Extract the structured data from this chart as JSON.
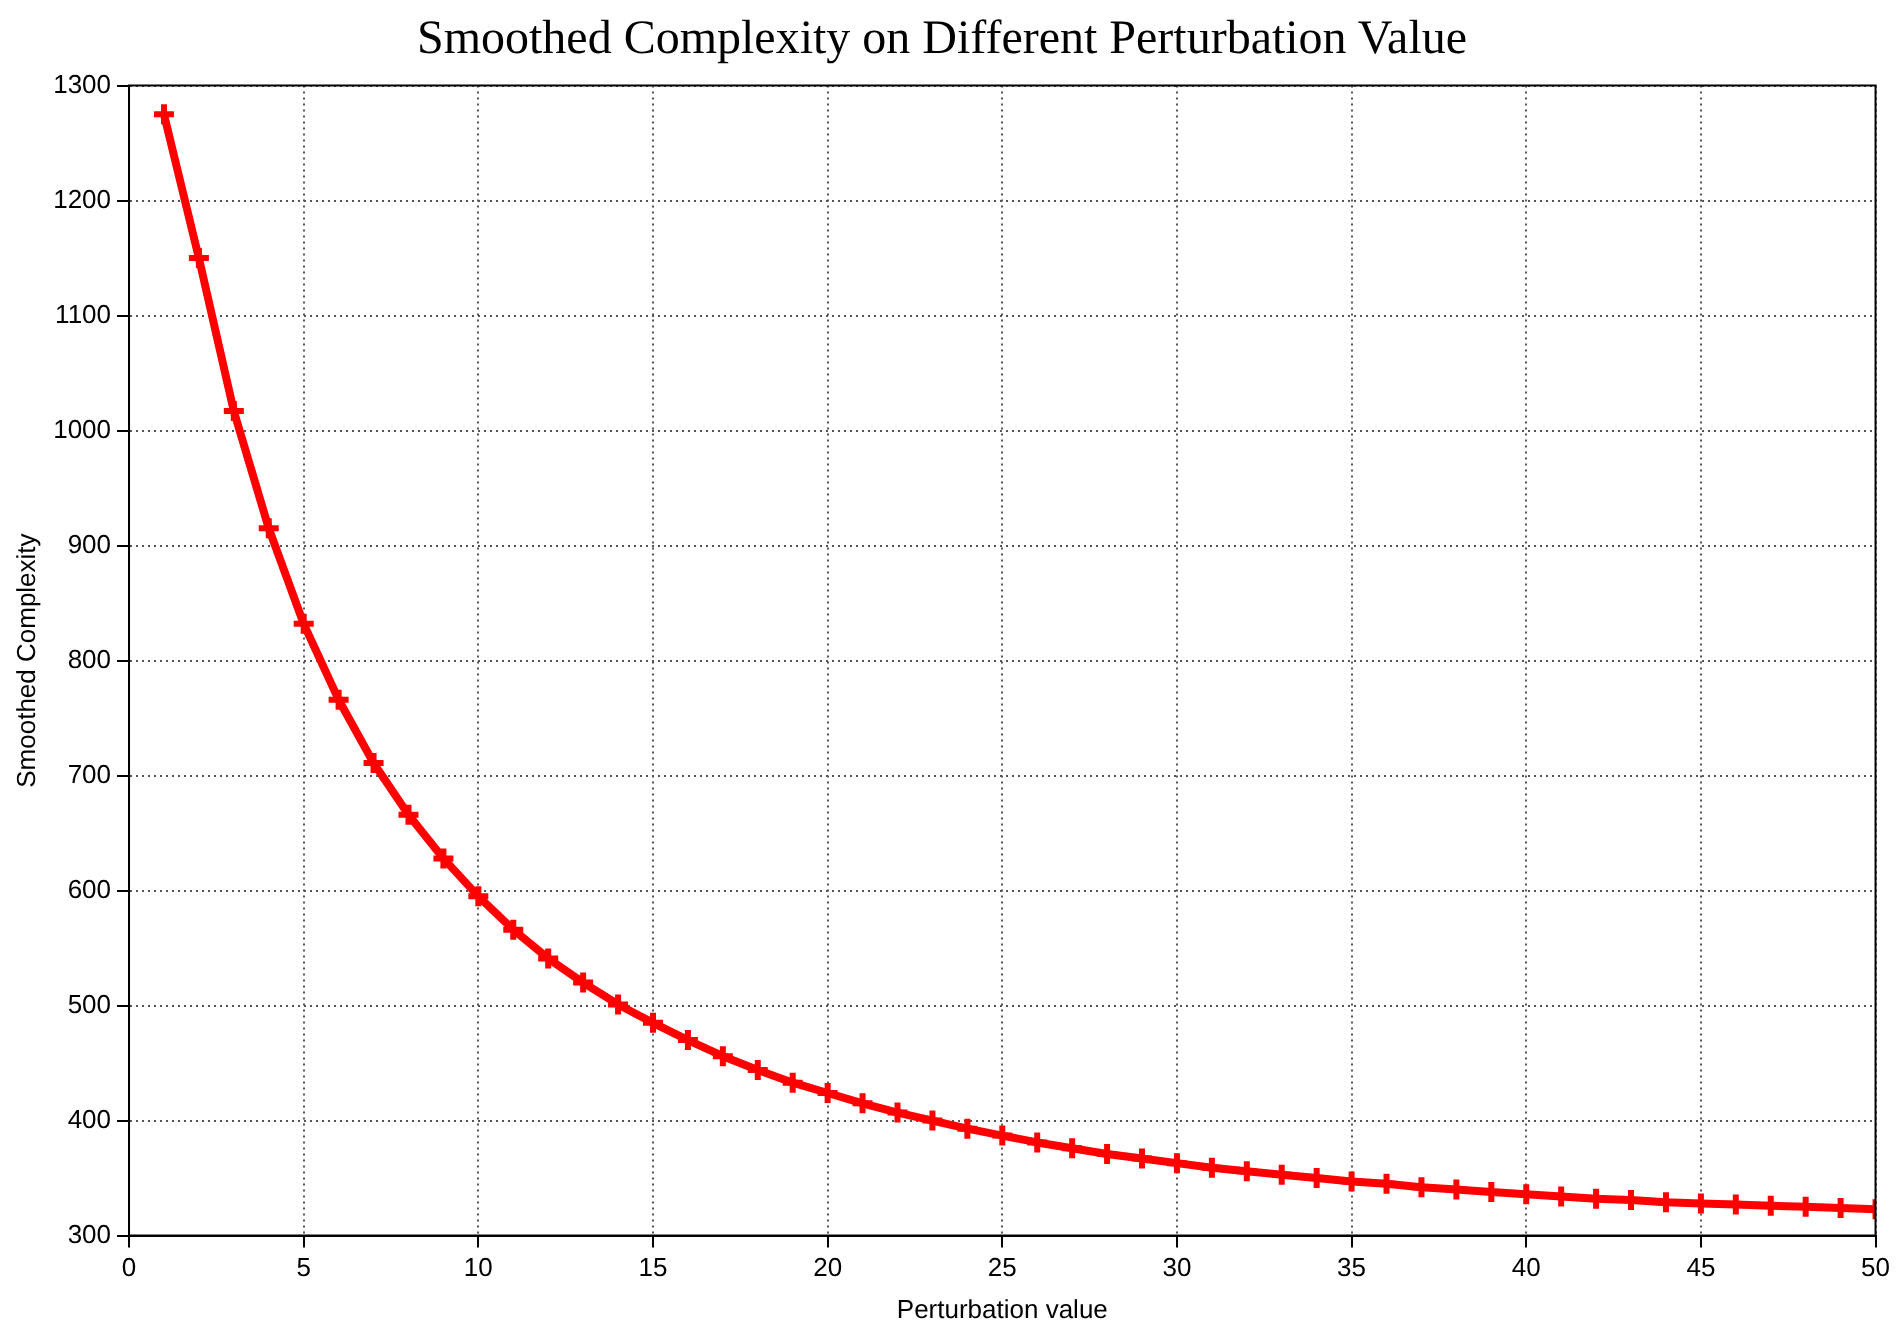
{
  "chart_data": {
    "type": "line",
    "title": "Smoothed Complexity on Different Perturbation Value",
    "xlabel": "Perturbation value",
    "ylabel": "Smoothed Complexity",
    "x": [
      1,
      2,
      3,
      4,
      5,
      6,
      7,
      8,
      9,
      10,
      11,
      12,
      13,
      14,
      15,
      16,
      17,
      18,
      19,
      20,
      21,
      22,
      23,
      24,
      25,
      26,
      27,
      28,
      29,
      30,
      31,
      32,
      33,
      34,
      35,
      36,
      37,
      38,
      39,
      40,
      41,
      42,
      43,
      44,
      45,
      46,
      47,
      48,
      49,
      50
    ],
    "series": [
      {
        "color": "#ff0000",
        "values": [
          1275,
          1150,
          1017,
          915,
          832,
          766,
          711,
          666,
          628,
          595,
          566,
          541,
          520,
          501,
          485,
          470,
          456,
          444,
          433,
          424,
          415,
          407,
          400,
          393,
          387,
          381,
          376,
          371,
          367,
          363,
          359,
          356,
          353,
          350,
          347,
          345,
          342,
          340,
          338,
          336,
          334,
          332,
          331,
          329,
          328,
          327,
          326,
          325,
          324,
          323
        ]
      }
    ],
    "xlim": [
      0,
      50
    ],
    "xticks": [
      0,
      5,
      10,
      15,
      20,
      25,
      30,
      35,
      40,
      45,
      50
    ],
    "ylim": [
      300,
      1300
    ],
    "yticks": [
      300,
      400,
      500,
      600,
      700,
      800,
      900,
      1000,
      1100,
      1200,
      1300
    ],
    "grid": true,
    "legend": false,
    "marker": "cross",
    "line_style": "solid"
  }
}
